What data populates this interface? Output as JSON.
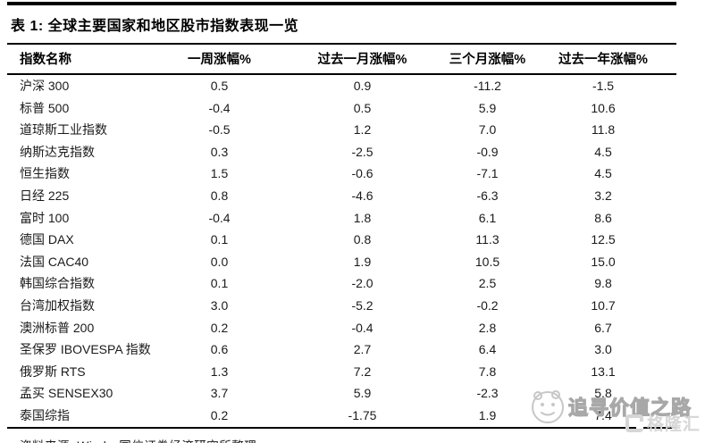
{
  "chart_data": {
    "type": "table",
    "title": "表 1:  全球主要国家和地区股市指数表现一览",
    "columns": [
      "指数名称",
      "一周涨幅%",
      "过去一月涨幅%",
      "三个月涨幅%",
      "过去一年涨幅%"
    ],
    "rows": [
      [
        "沪深 300",
        "0.5",
        "0.9",
        "-11.2",
        "-1.5"
      ],
      [
        "标普 500",
        "-0.4",
        "0.5",
        "5.9",
        "10.6"
      ],
      [
        "道琼斯工业指数",
        "-0.5",
        "1.2",
        "7.0",
        "11.8"
      ],
      [
        "纳斯达克指数",
        "0.3",
        "-2.5",
        "-0.9",
        "4.5"
      ],
      [
        "恒生指数",
        "1.5",
        "-0.6",
        "-7.1",
        "4.5"
      ],
      [
        "日经 225",
        "0.8",
        "-4.6",
        "-6.3",
        "3.2"
      ],
      [
        "富时 100",
        "-0.4",
        "1.8",
        "6.1",
        "8.6"
      ],
      [
        "德国 DAX",
        "0.1",
        "0.8",
        "11.3",
        "12.5"
      ],
      [
        "法国 CAC40",
        "0.0",
        "1.9",
        "10.5",
        "15.0"
      ],
      [
        "韩国综合指数",
        "0.1",
        "-2.0",
        "2.5",
        "9.8"
      ],
      [
        "台湾加权指数",
        "3.0",
        "-5.2",
        "-0.2",
        "10.7"
      ],
      [
        "澳洲标普 200",
        "0.2",
        "-0.4",
        "2.8",
        "6.7"
      ],
      [
        "圣保罗 IBOVESPA 指数",
        "0.6",
        "2.7",
        "6.4",
        "3.0"
      ],
      [
        "俄罗斯 RTS",
        "1.3",
        "7.2",
        "7.8",
        "13.1"
      ],
      [
        "孟买 SENSEX30",
        "3.7",
        "5.9",
        "-2.3",
        "5.8"
      ],
      [
        "泰国综指",
        "0.2",
        "-1.75",
        "1.9",
        "7.4"
      ]
    ],
    "source": "资料来源: Wind、国信证券经济研究所整理",
    "layout": {
      "grid": "off",
      "header_style": "bold",
      "rules": "horizontal-only"
    }
  },
  "watermark": {
    "text": "追寻价值之路",
    "brand": "格隆汇",
    "color": "#d6d6d6"
  },
  "colors": {
    "rule": "#000000",
    "body_text": "#1a1a1a",
    "background": "#ffffff"
  }
}
